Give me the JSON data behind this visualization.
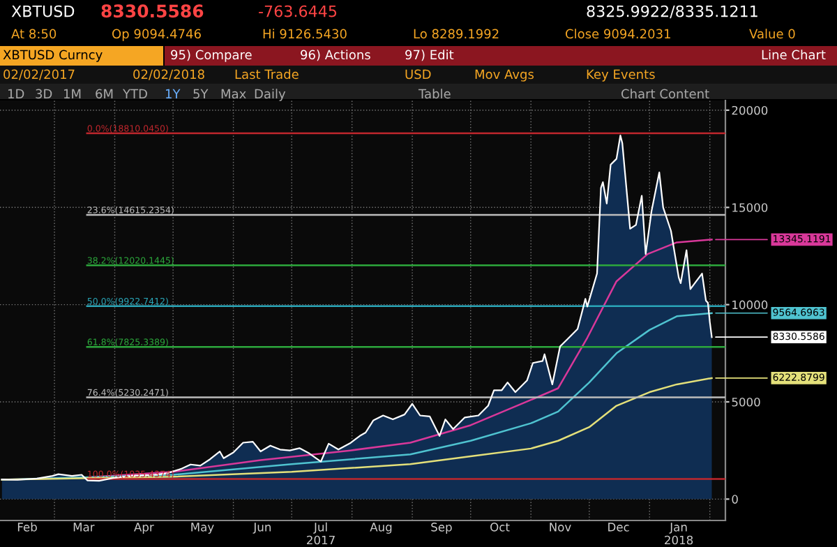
{
  "chart_data": {
    "type": "area",
    "x": [
      "2017-02-02",
      "2017-02-10",
      "2017-02-20",
      "2017-02-28",
      "2017-03-03",
      "2017-03-10",
      "2017-03-15",
      "2017-03-18",
      "2017-03-24",
      "2017-03-31",
      "2017-04-10",
      "2017-04-20",
      "2017-04-28",
      "2017-05-05",
      "2017-05-10",
      "2017-05-15",
      "2017-05-20",
      "2017-05-25",
      "2017-05-27",
      "2017-06-01",
      "2017-06-06",
      "2017-06-11",
      "2017-06-15",
      "2017-06-20",
      "2017-06-25",
      "2017-06-30",
      "2017-07-05",
      "2017-07-10",
      "2017-07-16",
      "2017-07-20",
      "2017-07-25",
      "2017-07-31",
      "2017-08-05",
      "2017-08-08",
      "2017-08-12",
      "2017-08-17",
      "2017-08-22",
      "2017-08-28",
      "2017-09-01",
      "2017-09-05",
      "2017-09-10",
      "2017-09-15",
      "2017-09-18",
      "2017-09-22",
      "2017-09-28",
      "2017-10-05",
      "2017-10-10",
      "2017-10-13",
      "2017-10-17",
      "2017-10-20",
      "2017-10-24",
      "2017-10-30",
      "2017-11-02",
      "2017-11-07",
      "2017-11-08",
      "2017-11-12",
      "2017-11-16",
      "2017-11-20",
      "2017-11-25",
      "2017-11-28",
      "2017-11-29",
      "2017-11-30",
      "2017-12-05",
      "2017-12-07",
      "2017-12-08",
      "2017-12-10",
      "2017-12-12",
      "2017-12-15",
      "2017-12-17",
      "2017-12-18",
      "2017-12-22",
      "2017-12-25",
      "2017-12-28",
      "2017-12-30",
      "2018-01-02",
      "2018-01-06",
      "2018-01-08",
      "2018-01-10",
      "2018-01-12",
      "2018-01-16",
      "2018-01-17",
      "2018-01-20",
      "2018-01-22",
      "2018-01-25",
      "2018-01-28",
      "2018-01-30",
      "2018-01-31",
      "2018-02-01",
      "2018-02-02"
    ],
    "series": [
      {
        "color": "#ffffff",
        "values": [
          1010,
          990,
          1060,
          1190,
          1280,
          1190,
          1250,
          960,
          940,
          1080,
          1200,
          1240,
          1330,
          1550,
          1780,
          1720,
          2050,
          2450,
          2100,
          2400,
          2900,
          2950,
          2450,
          2750,
          2550,
          2500,
          2620,
          2350,
          1930,
          2850,
          2550,
          2870,
          3250,
          3420,
          4050,
          4300,
          4100,
          4350,
          4900,
          4300,
          4250,
          3250,
          4100,
          3600,
          4200,
          4300,
          4800,
          5600,
          5600,
          6000,
          5500,
          6100,
          7000,
          7100,
          7450,
          5900,
          7850,
          8250,
          8750,
          9900,
          10300,
          9900,
          11600,
          16000,
          16300,
          15200,
          17200,
          17500,
          18700,
          18300,
          13900,
          14100,
          15600,
          12600,
          14800,
          16800,
          15000,
          14400,
          13800,
          11400,
          11100,
          12800,
          10800,
          11200,
          11600,
          10200,
          10100,
          9100,
          8330.5586
        ]
      },
      {
        "type": "line",
        "color": "#d9389a",
        "x": [
          "2017-02-02",
          "2017-03-15",
          "2017-05-01",
          "2017-06-15",
          "2017-07-31",
          "2017-08-31",
          "2017-10-01",
          "2017-11-01",
          "2017-11-15",
          "2017-11-30",
          "2017-12-15",
          "2017-12-31",
          "2018-01-15",
          "2018-02-02"
        ],
        "values": [
          1000,
          1100,
          1400,
          2000,
          2500,
          2900,
          3800,
          5100,
          5700,
          8300,
          11200,
          12600,
          13200,
          13345.1191
        ]
      },
      {
        "type": "line",
        "color": "#4fc3d0",
        "x": [
          "2017-02-02",
          "2017-05-01",
          "2017-07-01",
          "2017-08-31",
          "2017-10-01",
          "2017-11-01",
          "2017-11-15",
          "2017-12-01",
          "2017-12-15",
          "2018-01-01",
          "2018-01-15",
          "2018-02-02"
        ],
        "values": [
          1000,
          1250,
          1800,
          2300,
          3000,
          3900,
          4500,
          6000,
          7500,
          8700,
          9400,
          9564.6963
        ]
      },
      {
        "type": "line",
        "color": "#e4e07a",
        "x": [
          "2017-02-02",
          "2017-05-01",
          "2017-07-01",
          "2017-08-31",
          "2017-10-01",
          "2017-11-01",
          "2017-11-15",
          "2017-12-01",
          "2017-12-15",
          "2018-01-01",
          "2018-01-15",
          "2018-02-02"
        ],
        "values": [
          1000,
          1150,
          1400,
          1800,
          2200,
          2600,
          3000,
          3700,
          4800,
          5500,
          5900,
          6222.8799
        ]
      }
    ],
    "xlim": [
      "2017-02-01",
      "2018-02-09"
    ],
    "xticks": [
      {
        "value": "2017-02-15",
        "label": "Feb"
      },
      {
        "value": "2017-03-01",
        "label": null
      },
      {
        "value": "2017-03-16",
        "label": "Mar"
      },
      {
        "value": "2017-04-01",
        "label": null
      },
      {
        "value": "2017-04-16",
        "label": "Apr"
      },
      {
        "value": "2017-05-01",
        "label": null
      },
      {
        "value": "2017-05-16",
        "label": "May"
      },
      {
        "value": "2017-06-01",
        "label": null
      },
      {
        "value": "2017-06-16",
        "label": "Jun"
      },
      {
        "value": "2017-07-01",
        "label": null
      },
      {
        "value": "2017-07-16",
        "label": "Jul\n2017"
      },
      {
        "value": "2017-08-01",
        "label": null
      },
      {
        "value": "2017-08-16",
        "label": "Aug"
      },
      {
        "value": "2017-09-01",
        "label": null
      },
      {
        "value": "2017-09-16",
        "label": "Sep"
      },
      {
        "value": "2017-10-01",
        "label": null
      },
      {
        "value": "2017-10-16",
        "label": "Oct"
      },
      {
        "value": "2017-11-01",
        "label": null
      },
      {
        "value": "2017-11-16",
        "label": "Nov"
      },
      {
        "value": "2017-12-01",
        "label": null
      },
      {
        "value": "2017-12-16",
        "label": "Dec"
      },
      {
        "value": "2018-01-01",
        "label": null
      },
      {
        "value": "2018-01-16",
        "label": "Jan\n2018"
      },
      {
        "value": "2018-02-01",
        "label": null
      }
    ],
    "ylim": [
      -1100,
      20500
    ],
    "yticks": [
      0,
      5000,
      10000,
      15000,
      20000
    ],
    "grid": true,
    "legend": false,
    "ref_lines": [
      {
        "axis": "y",
        "value": 18810.045,
        "label": "0.0%(18810.0450)",
        "color": "#c0272d"
      },
      {
        "axis": "y",
        "value": 14615.2354,
        "label": "23.6%(14615.2354)",
        "color": "#bdbdbd"
      },
      {
        "axis": "y",
        "value": 12020.1445,
        "label": "38.2%(12020.1445)",
        "color": "#2ca83c"
      },
      {
        "axis": "y",
        "value": 9922.7412,
        "label": "50.0%(9922.7412)",
        "color": "#2aa6b8"
      },
      {
        "axis": "y",
        "value": 7825.3389,
        "label": "61.8%(7825.3389)",
        "color": "#2ca83c"
      },
      {
        "axis": "y",
        "value": 5230.2471,
        "label": "76.4%(5230.2471)",
        "color": "#bdbdbd"
      },
      {
        "axis": "y",
        "value": 1035.4374,
        "label": "100.0%(1035.4374)",
        "color": "#c0272d"
      }
    ],
    "annotations": [
      "XBTUSD",
      "8330.5586",
      "-763.6445",
      "8325.9922/8335.1211",
      "At 8:50",
      "Op 9094.4746",
      "Hi 9126.5430",
      "Lo 8289.1992",
      "Close 9094.2031",
      "Value 0",
      "XBTUSD Curncy",
      "95) Compare",
      "96) Actions",
      "97) Edit",
      "Line Chart",
      "02/02/2017",
      "02/02/2018",
      "Last Trade",
      "USD",
      "Mov Avgs",
      "Key Events",
      "1D",
      "3D",
      "1M",
      "6M",
      "YTD",
      "1Y",
      "5Y",
      "Max",
      "Daily",
      "Table",
      "Chart Content",
      {
        "text": "13345.1191",
        "x": "2018-02-02",
        "y": 13345.1191
      },
      {
        "text": "9564.6963",
        "x": "2018-02-02",
        "y": 9564.6963
      },
      {
        "text": "8330.5586",
        "x": "2018-02-02",
        "y": 8330.5586
      },
      {
        "text": "6222.8799",
        "x": "2018-02-02",
        "y": 6222.8799
      }
    ]
  }
}
